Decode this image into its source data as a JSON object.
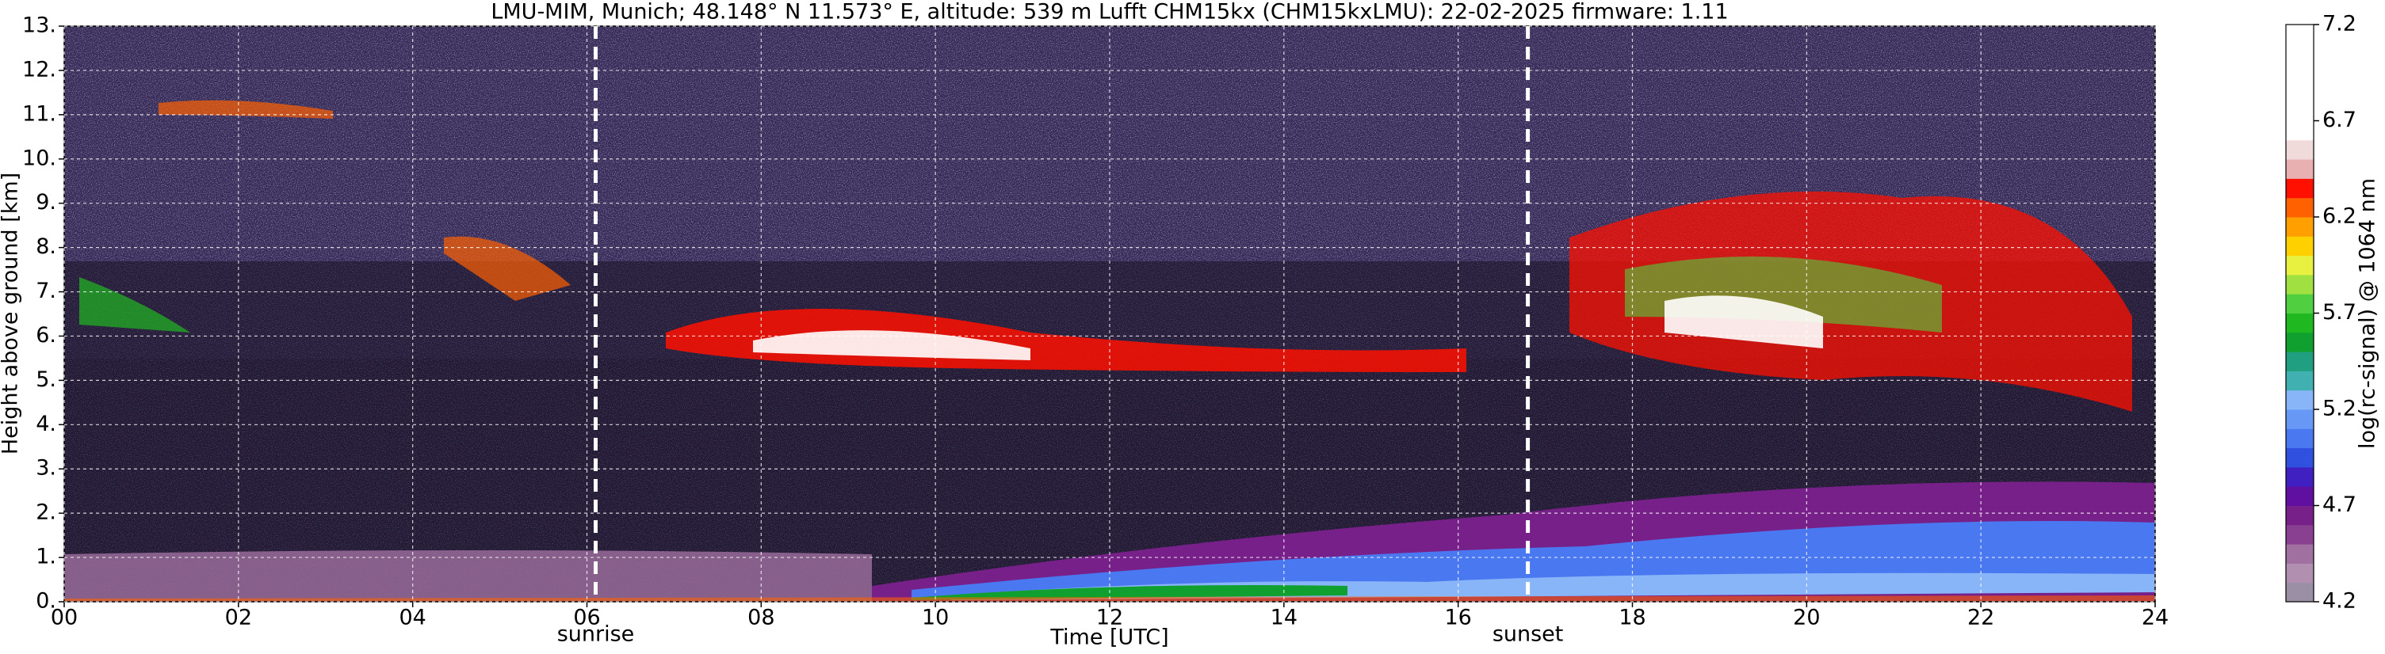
{
  "chart_data": {
    "type": "heatmap",
    "title": "LMU-MIM, Munich; 48.148° N 11.573° E, altitude: 539 m    Lufft CHM15kx (CHM15kxLMU): 22-02-2025    firmware: 1.11",
    "x_label": "Time [UTC]",
    "y_label": "Height above ground [km]",
    "xlim": [
      0,
      24
    ],
    "xticks": [
      {
        "value": 0,
        "label": "00"
      },
      {
        "value": 2,
        "label": "02"
      },
      {
        "value": 4,
        "label": "04"
      },
      {
        "value": 6,
        "label": "06"
      },
      {
        "value": 8,
        "label": "08"
      },
      {
        "value": 10,
        "label": "10"
      },
      {
        "value": 12,
        "label": "12"
      },
      {
        "value": 14,
        "label": "14"
      },
      {
        "value": 16,
        "label": "16"
      },
      {
        "value": 18,
        "label": "18"
      },
      {
        "value": 20,
        "label": "20"
      },
      {
        "value": 22,
        "label": "22"
      },
      {
        "value": 24,
        "label": "24"
      }
    ],
    "ylim": [
      0,
      13
    ],
    "yticks": [
      {
        "value": 0,
        "label": "0."
      },
      {
        "value": 1,
        "label": "1."
      },
      {
        "value": 2,
        "label": "2."
      },
      {
        "value": 3,
        "label": "3."
      },
      {
        "value": 4,
        "label": "4."
      },
      {
        "value": 5,
        "label": "5."
      },
      {
        "value": 6,
        "label": "6."
      },
      {
        "value": 7,
        "label": "7."
      },
      {
        "value": 8,
        "label": "8."
      },
      {
        "value": 9,
        "label": "9."
      },
      {
        "value": 10,
        "label": "10."
      },
      {
        "value": 11,
        "label": "11."
      },
      {
        "value": 12,
        "label": "12."
      },
      {
        "value": 13,
        "label": "13."
      }
    ],
    "grid": true,
    "annotations": [
      {
        "text": "sunrise",
        "x": 6.1
      },
      {
        "text": "sunset",
        "x": 16.8
      }
    ],
    "colorbar": {
      "label": "log(rc-signal) @ 1064 nm",
      "lim": [
        4.2,
        7.2
      ],
      "ticks": [
        4.2,
        4.7,
        5.2,
        5.7,
        6.2,
        6.7,
        7.2
      ],
      "colors": [
        "#9b8fa6",
        "#b08fb0",
        "#a070a0",
        "#8a4090",
        "#78208a",
        "#6010a0",
        "#4020c0",
        "#3050e0",
        "#4a78f0",
        "#6898f5",
        "#88b4f8",
        "#40b0b0",
        "#20a080",
        "#10a030",
        "#20b820",
        "#50d040",
        "#a0e040",
        "#e8f040",
        "#ffd000",
        "#ffa000",
        "#ff6000",
        "#ff1000",
        "#e8b0b0",
        "#f0dada",
        "#ffffff",
        "#ffffff",
        "#ffffff",
        "#ffffff",
        "#ffffff",
        "#ffffff"
      ]
    }
  }
}
